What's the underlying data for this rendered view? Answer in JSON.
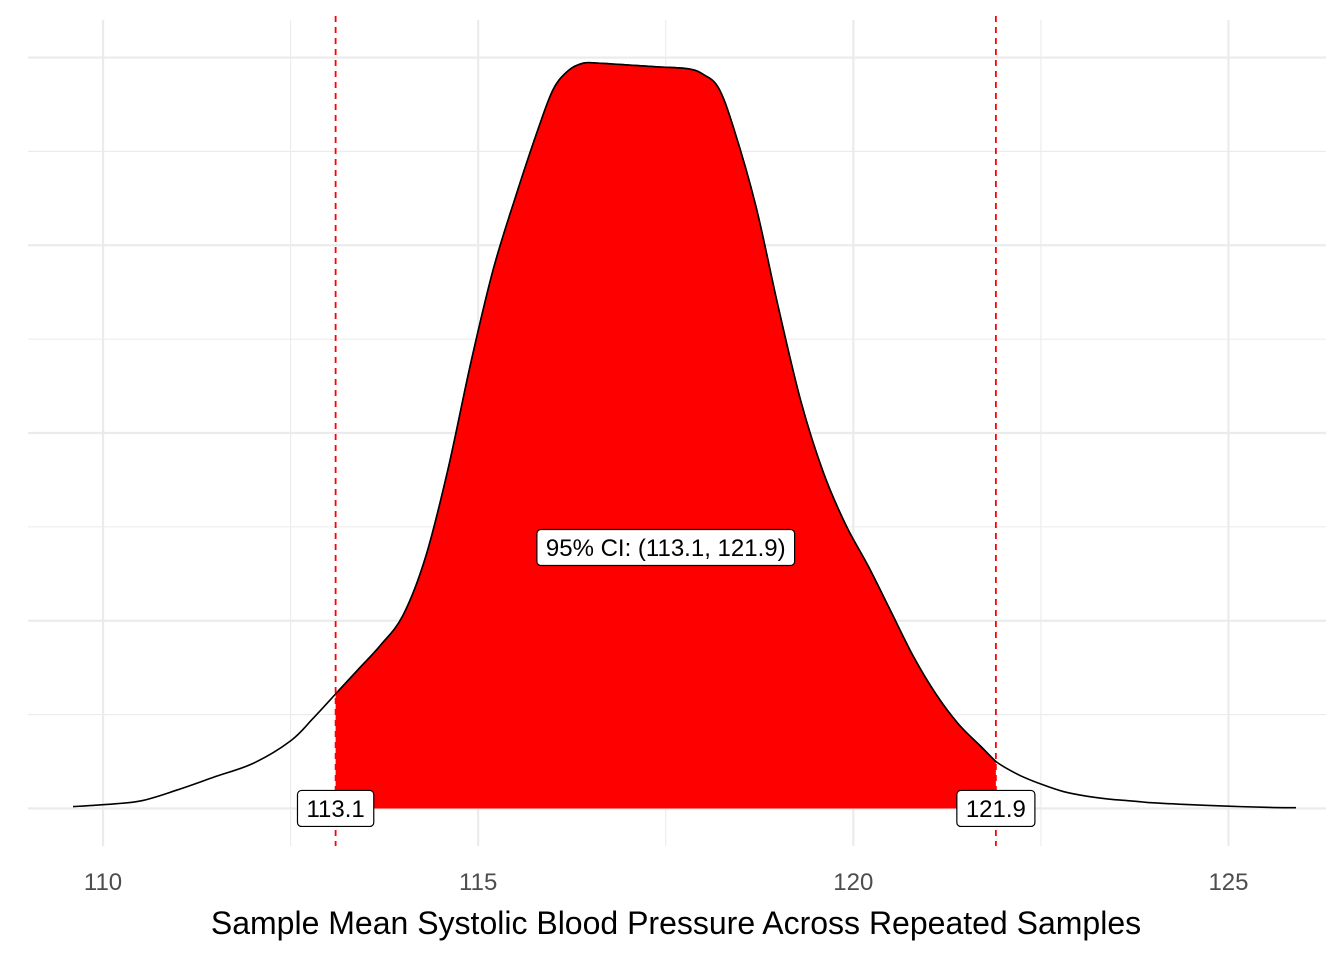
{
  "chart_data": {
    "type": "area",
    "title": "",
    "xlabel": "Sample Mean Systolic Blood Pressure Across Repeated Samples",
    "ylabel": "",
    "xlim": [
      109.0,
      126.3
    ],
    "ylim": [
      -0.01,
      0.21
    ],
    "x_ticks": [
      110,
      115,
      120,
      125
    ],
    "x_tick_labels": [
      "110",
      "115",
      "120",
      "125"
    ],
    "y_gridlines": [
      0.0,
      0.025,
      0.05,
      0.075,
      0.1,
      0.125,
      0.15,
      0.175,
      0.2
    ],
    "grid": true,
    "density": {
      "x": [
        109.6,
        110.0,
        110.5,
        111.0,
        111.5,
        112.0,
        112.5,
        112.8,
        113.1,
        113.4,
        113.7,
        114.0,
        114.3,
        114.6,
        114.9,
        115.2,
        115.5,
        115.8,
        116.0,
        116.2,
        116.4,
        116.6,
        117.0,
        117.4,
        117.8,
        118.0,
        118.2,
        118.4,
        118.7,
        119.0,
        119.3,
        119.6,
        119.9,
        120.2,
        120.5,
        120.8,
        121.1,
        121.4,
        121.7,
        121.9,
        122.2,
        122.5,
        122.8,
        123.1,
        123.4,
        123.7,
        124.0,
        124.5,
        125.0,
        125.5,
        125.9
      ],
      "y": [
        0.0005,
        0.001,
        0.002,
        0.005,
        0.0085,
        0.012,
        0.018,
        0.024,
        0.0305,
        0.037,
        0.0435,
        0.0515,
        0.067,
        0.0905,
        0.1185,
        0.1435,
        0.163,
        0.181,
        0.1915,
        0.1965,
        0.1985,
        0.1985,
        0.198,
        0.1975,
        0.197,
        0.1955,
        0.192,
        0.1815,
        0.1605,
        0.1335,
        0.1085,
        0.0895,
        0.0755,
        0.0645,
        0.0525,
        0.0405,
        0.0305,
        0.0225,
        0.0165,
        0.0125,
        0.009,
        0.0065,
        0.0045,
        0.0033,
        0.0025,
        0.002,
        0.0015,
        0.001,
        0.0006,
        0.0003,
        0.0002
      ]
    },
    "ci": {
      "lower": 113.1,
      "upper": 121.9,
      "lower_label": "113.1",
      "upper_label": "121.9"
    },
    "annotation": "95% CI: (113.1, 121.9)",
    "annotation_y": 0.0695,
    "colors": {
      "fill": "#ff0000",
      "outline": "#000000",
      "ci_line": "#ff0000",
      "grid": "#ebebeb"
    }
  }
}
